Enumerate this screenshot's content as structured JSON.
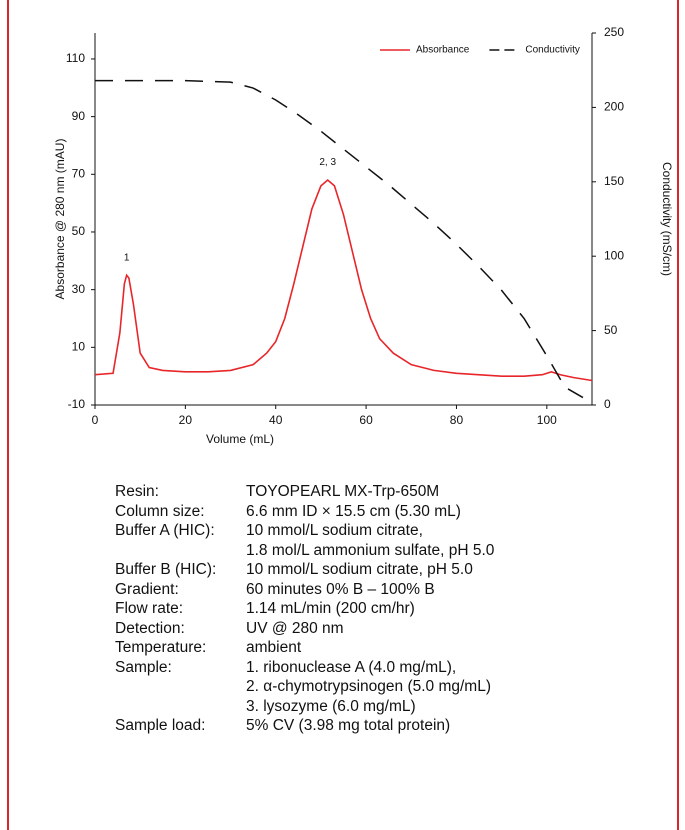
{
  "chart_data": {
    "type": "line",
    "x_label": "Volume (mL)",
    "y_label": "Absorbance @ 280 nm (mAU)",
    "y2_label": "Conductivity (mS/cm)",
    "xlim": [
      0,
      110
    ],
    "xticks": [
      0,
      20,
      40,
      60,
      80,
      100
    ],
    "ylim": [
      -10,
      119
    ],
    "yticks": [
      -10,
      10,
      30,
      50,
      70,
      90,
      110
    ],
    "y2lim": [
      0,
      250
    ],
    "y2ticks": [
      0,
      50,
      100,
      150,
      200,
      250
    ],
    "legend": "top-right",
    "series": [
      {
        "name": "Absorbance",
        "color": "#e8262a",
        "line_style": "solid",
        "x": [
          0,
          4,
          5.5,
          6.5,
          7,
          7.5,
          8.5,
          10,
          12,
          15,
          20,
          25,
          30,
          35,
          38,
          40,
          42,
          44,
          46,
          48,
          50,
          51.5,
          53,
          55,
          57,
          59,
          61,
          63,
          66,
          70,
          75,
          80,
          90,
          95,
          99,
          101,
          103,
          106,
          110
        ],
        "values": [
          0.5,
          1,
          15,
          32,
          35,
          34,
          25,
          8,
          3,
          2,
          1.5,
          1.5,
          2,
          4,
          8,
          12,
          20,
          32,
          45,
          58,
          66,
          68,
          66,
          56,
          43,
          30,
          20,
          13,
          8,
          4,
          2,
          1,
          0,
          0,
          0.5,
          1.5,
          0.5,
          -0.5,
          -1.5
        ]
      },
      {
        "name": "Conductivity",
        "color": "#111111",
        "line_style": "dashed",
        "axis": "y2",
        "x": [
          0,
          10,
          20,
          30,
          35,
          40,
          45,
          50,
          55,
          60,
          65,
          70,
          75,
          80,
          85,
          90,
          95,
          100,
          104,
          108
        ],
        "values": [
          218,
          218,
          218,
          217,
          213,
          205,
          195,
          184,
          172,
          160,
          148,
          135,
          122,
          108,
          93,
          77,
          58,
          33,
          12,
          5
        ]
      }
    ],
    "annotations": [
      {
        "text": "1",
        "x": 7,
        "y": 39
      },
      {
        "text": "2, 3",
        "x": 51.5,
        "y": 72
      }
    ]
  },
  "conditions": [
    {
      "label": "Resin:",
      "value": [
        "TOYOPEARL MX-Trp-650M"
      ]
    },
    {
      "label": "Column size:",
      "value": [
        "6.6 mm ID × 15.5 cm (5.30 mL)"
      ]
    },
    {
      "label": "Buffer A (HIC):",
      "value": [
        "10 mmol/L sodium citrate,",
        "1.8 mol/L ammonium sulfate, pH 5.0"
      ]
    },
    {
      "label": "Buffer B (HIC):",
      "value": [
        "10 mmol/L sodium citrate, pH 5.0"
      ]
    },
    {
      "label": "Gradient:",
      "value": [
        "60 minutes 0% B – 100% B"
      ]
    },
    {
      "label": "Flow rate:",
      "value": [
        "1.14 mL/min (200 cm/hr)"
      ]
    },
    {
      "label": "Detection:",
      "value": [
        "UV @ 280 nm"
      ]
    },
    {
      "label": "Temperature:",
      "value": [
        "ambient"
      ]
    },
    {
      "label": "Sample:",
      "value": [
        "1. ribonuclease A (4.0 mg/mL),",
        "2. α-chymotrypsinogen (5.0 mg/mL)",
        "3. lysozyme (6.0 mg/mL)"
      ]
    },
    {
      "label": "Sample load:",
      "value": [
        "5% CV (3.98 mg total protein)"
      ]
    }
  ]
}
